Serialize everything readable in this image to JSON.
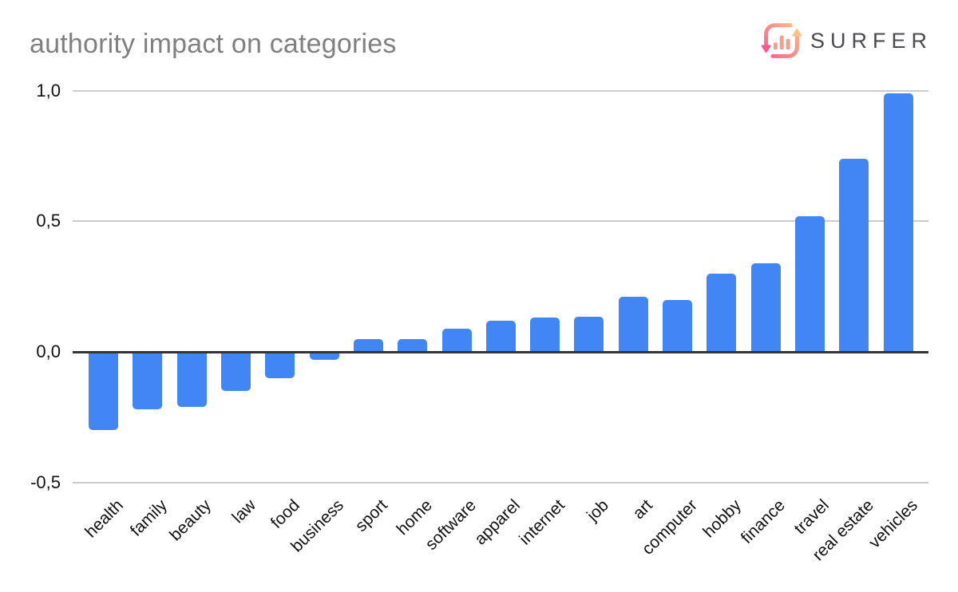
{
  "logo": {
    "text": "SURFER",
    "text_color": "#4b4b50",
    "gradient_start": "#f7588f",
    "gradient_end": "#fcc488",
    "mark_bars_color": "#f2a08f"
  },
  "chart_data": {
    "type": "bar",
    "title": "authority impact on categories",
    "categories": [
      "health",
      "family",
      "beauty",
      "law",
      "food",
      "business",
      "sport",
      "home",
      "software",
      "apparel",
      "internet",
      "job",
      "art",
      "computer",
      "hobby",
      "finance",
      "travel",
      "real estate",
      "vehicles"
    ],
    "values": [
      -0.3,
      -0.22,
      -0.21,
      -0.15,
      -0.1,
      -0.03,
      0.05,
      0.05,
      0.09,
      0.12,
      0.13,
      0.135,
      0.21,
      0.2,
      0.3,
      0.34,
      0.52,
      0.74,
      0.99
    ],
    "xlabel": "",
    "ylabel": "",
    "ylim": [
      -0.5,
      1.0
    ],
    "yticks": [
      {
        "value": 1.0,
        "label": "1,0"
      },
      {
        "value": 0.5,
        "label": "0,5"
      },
      {
        "value": 0.0,
        "label": "0,0"
      },
      {
        "value": -0.5,
        "label": "-0,5"
      }
    ],
    "decimal_separator": ",",
    "grid": true,
    "legend": "none",
    "bar_color": "#4285f4",
    "axis_color": "#333333",
    "gridline_color": "#cccccc",
    "title_color": "#808080",
    "label_color": "#111111"
  }
}
